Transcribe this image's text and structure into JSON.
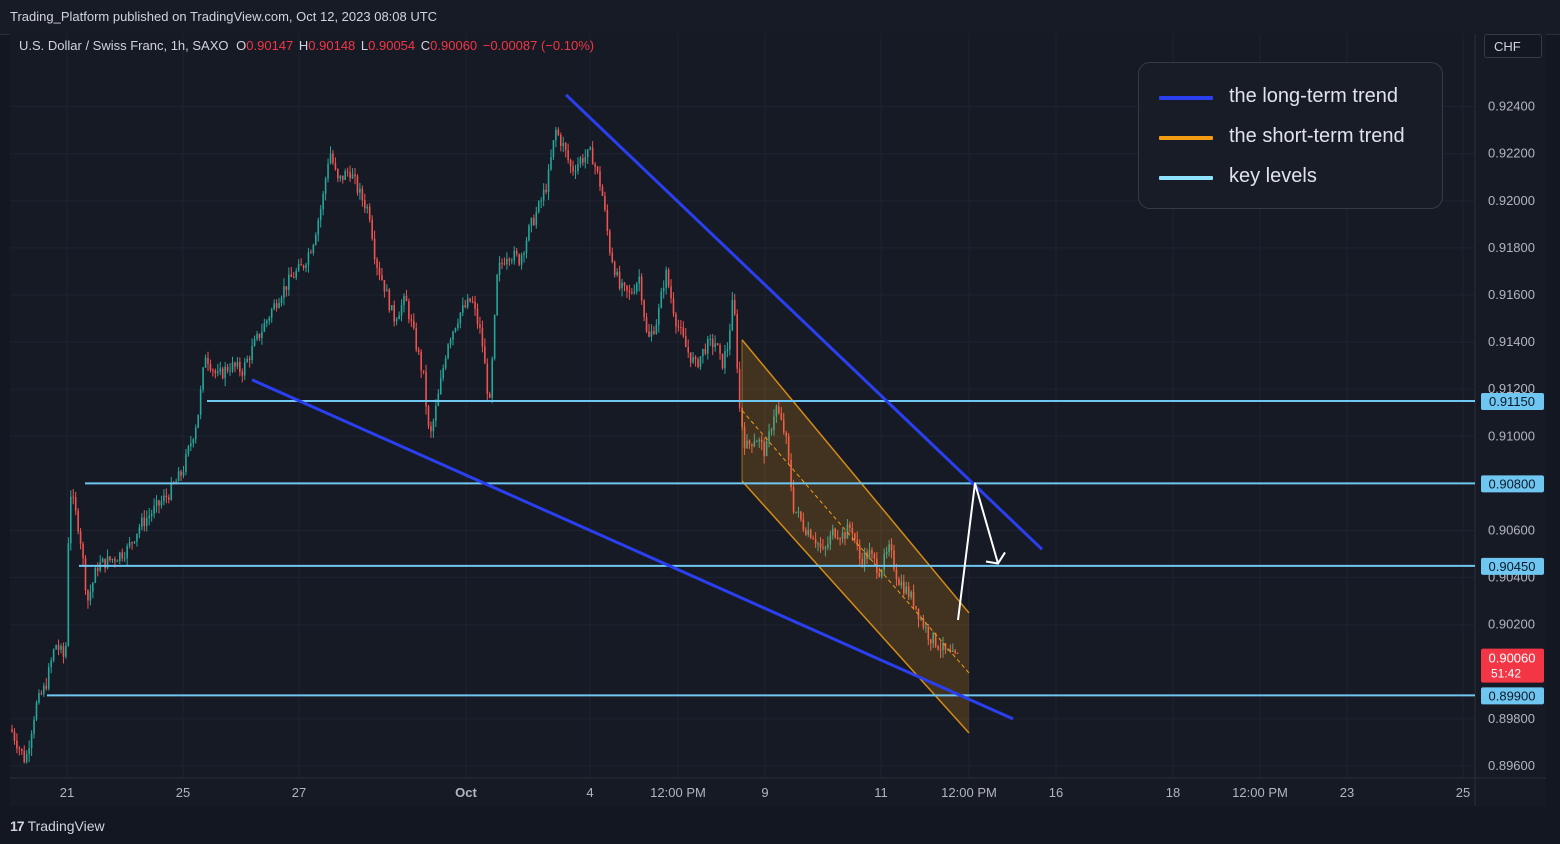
{
  "header": {
    "published": "Trading_Platform published on TradingView.com, Oct 12, 2023 08:08 UTC"
  },
  "symbol": {
    "name": "U.S. Dollar / Swiss Franc, 1h, SAXO",
    "open_label": "O",
    "open": "0.90147",
    "high_label": "H",
    "high": "0.90148",
    "low_label": "L",
    "low": "0.90054",
    "close_label": "C",
    "close": "0.90060",
    "change": "−0.00087 (−0.10%)"
  },
  "currency_button": "CHF",
  "legend": {
    "items": [
      {
        "label": "the long-term trend",
        "color": "#2a3ff0"
      },
      {
        "label": "the short-term trend",
        "color": "#f39c12"
      },
      {
        "label": "key levels",
        "color": "#8fe3ff"
      }
    ]
  },
  "footer": {
    "logo_mark": "17",
    "logo_text": "TradingView"
  },
  "colors": {
    "background": "#161a25",
    "up": "#26a69a",
    "down": "#ef5350",
    "long_trend": "#2a3ff0",
    "short_trend": "#f39c12",
    "key_level": "#6fc6f0",
    "price_tag": "#f23645",
    "arrow": "#ffffff"
  },
  "chart_data": {
    "type": "candlestick",
    "symbol": "USDCHF",
    "timeframe": "1h",
    "ylim": [
      0.8956,
      0.9246
    ],
    "y_ticks": [
      0.896,
      0.898,
      0.902,
      0.904,
      0.906,
      0.91,
      0.912,
      0.914,
      0.916,
      0.918,
      0.92,
      0.922,
      0.924
    ],
    "y_tick_labels": [
      "0.89600",
      "0.89800",
      "0.90200",
      "0.90400",
      "0.90600",
      "0.91000",
      "0.91200",
      "0.91400",
      "0.91600",
      "0.91800",
      "0.92000",
      "0.92200",
      "0.92400"
    ],
    "x_tick_labels": [
      "21",
      "25",
      "27",
      "Oct",
      "4",
      "12:00 PM",
      "9",
      "11",
      "12:00 PM",
      "16",
      "18",
      "12:00 PM",
      "23",
      "25"
    ],
    "price_path": [
      [
        0,
        0.8979
      ],
      [
        14,
        0.8975
      ],
      [
        28,
        0.8962
      ],
      [
        38,
        0.8985
      ],
      [
        48,
        0.8994
      ],
      [
        58,
        0.9012
      ],
      [
        68,
        0.9005
      ],
      [
        72,
        0.9078
      ],
      [
        82,
        0.906
      ],
      [
        90,
        0.903
      ],
      [
        100,
        0.9045
      ],
      [
        115,
        0.9048
      ],
      [
        130,
        0.9052
      ],
      [
        142,
        0.9062
      ],
      [
        155,
        0.9068
      ],
      [
        170,
        0.9075
      ],
      [
        185,
        0.9085
      ],
      [
        195,
        0.91
      ],
      [
        200,
        0.9108
      ],
      [
        208,
        0.9135
      ],
      [
        220,
        0.9125
      ],
      [
        232,
        0.913
      ],
      [
        245,
        0.9128
      ],
      [
        258,
        0.914
      ],
      [
        270,
        0.915
      ],
      [
        282,
        0.916
      ],
      [
        295,
        0.9168
      ],
      [
        305,
        0.9172
      ],
      [
        315,
        0.9182
      ],
      [
        325,
        0.92
      ],
      [
        332,
        0.9222
      ],
      [
        340,
        0.9208
      ],
      [
        352,
        0.9213
      ],
      [
        362,
        0.9203
      ],
      [
        372,
        0.9195
      ],
      [
        378,
        0.9175
      ],
      [
        386,
        0.9165
      ],
      [
        396,
        0.915
      ],
      [
        408,
        0.9158
      ],
      [
        418,
        0.914
      ],
      [
        426,
        0.9125
      ],
      [
        432,
        0.9098
      ],
      [
        440,
        0.9115
      ],
      [
        450,
        0.914
      ],
      [
        462,
        0.9152
      ],
      [
        474,
        0.9158
      ],
      [
        484,
        0.9142
      ],
      [
        492,
        0.9112
      ],
      [
        500,
        0.917
      ],
      [
        510,
        0.9178
      ],
      [
        522,
        0.9175
      ],
      [
        532,
        0.9188
      ],
      [
        542,
        0.9198
      ],
      [
        550,
        0.9208
      ],
      [
        558,
        0.923
      ],
      [
        566,
        0.9223
      ],
      [
        574,
        0.9213
      ],
      [
        584,
        0.9218
      ],
      [
        594,
        0.922
      ],
      [
        604,
        0.9205
      ],
      [
        612,
        0.918
      ],
      [
        622,
        0.9163
      ],
      [
        632,
        0.916
      ],
      [
        642,
        0.9168
      ],
      [
        650,
        0.914
      ],
      [
        660,
        0.915
      ],
      [
        668,
        0.917
      ],
      [
        678,
        0.915
      ],
      [
        688,
        0.9138
      ],
      [
        698,
        0.913
      ],
      [
        708,
        0.9138
      ],
      [
        718,
        0.914
      ],
      [
        724,
        0.913
      ],
      [
        730,
        0.9138
      ],
      [
        736,
        0.916
      ],
      [
        742,
        0.9112
      ],
      [
        748,
        0.9095
      ],
      [
        758,
        0.91
      ],
      [
        768,
        0.9093
      ],
      [
        778,
        0.9113
      ],
      [
        788,
        0.91
      ],
      [
        796,
        0.907
      ],
      [
        806,
        0.9062
      ],
      [
        816,
        0.9058
      ],
      [
        826,
        0.905
      ],
      [
        836,
        0.906
      ],
      [
        846,
        0.9058
      ],
      [
        854,
        0.9062
      ],
      [
        862,
        0.9048
      ],
      [
        872,
        0.905
      ],
      [
        882,
        0.9043
      ],
      [
        892,
        0.9052
      ],
      [
        900,
        0.904
      ],
      [
        908,
        0.9035
      ],
      [
        916,
        0.903
      ],
      [
        924,
        0.9022
      ],
      [
        932,
        0.9015
      ],
      [
        940,
        0.9012
      ],
      [
        948,
        0.9008
      ],
      [
        956,
        0.9006
      ]
    ],
    "long_term_trend_lines": [
      {
        "from": [
          "Oct 3",
          0.9245
        ],
        "to": [
          "Oct 15",
          0.9052
        ]
      },
      {
        "from": [
          "Sep 26",
          0.9124
        ],
        "to": [
          "Oct 13",
          0.898
        ]
      }
    ],
    "short_term_channel": {
      "upper": {
        "from": [
          "Oct 8",
          0.9141
        ],
        "to": [
          "Oct 12",
          0.9025
        ]
      },
      "lower": {
        "from": [
          "Oct 8",
          0.9081
        ],
        "to": [
          "Oct 12",
          0.8974
        ]
      }
    },
    "key_levels": [
      0.9115,
      0.908,
      0.9045,
      0.899
    ],
    "key_level_labels": [
      "0.91150",
      "0.90800",
      "0.90450",
      "0.89900"
    ],
    "last_price": {
      "value": "0.90060",
      "countdown": "51:42"
    },
    "projection_arrow": [
      [
        958,
        0.9022
      ],
      [
        975,
        0.908
      ],
      [
        998,
        0.9046
      ]
    ]
  }
}
